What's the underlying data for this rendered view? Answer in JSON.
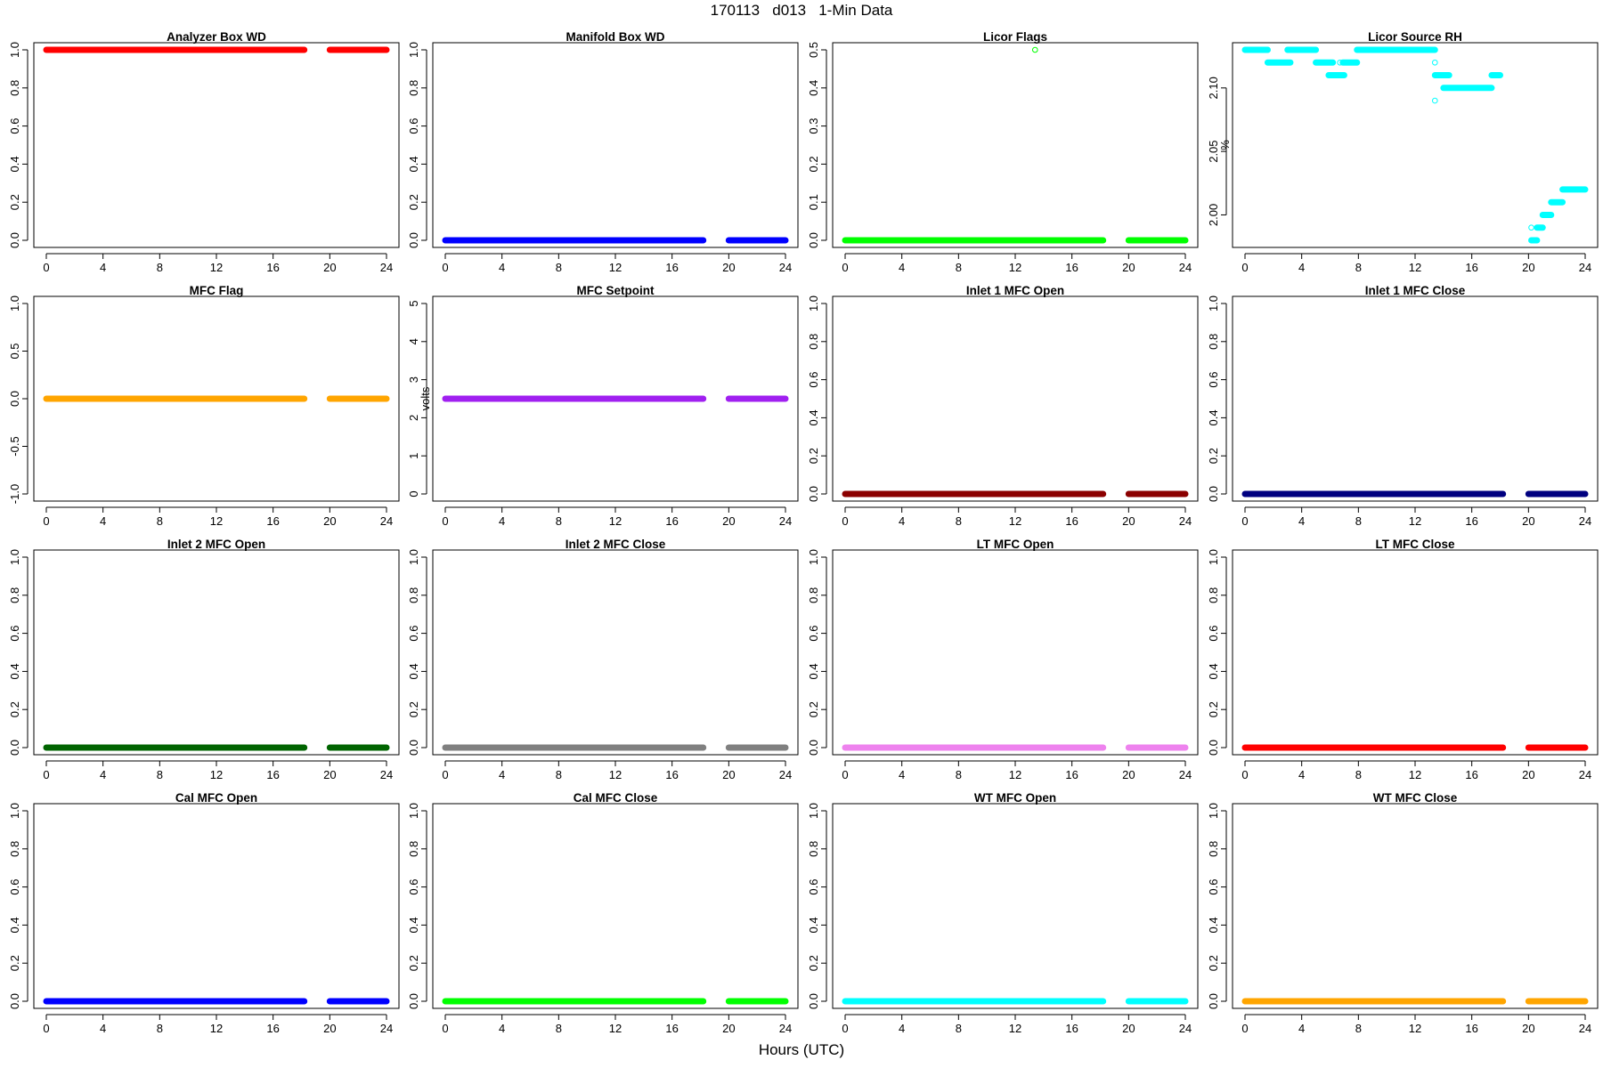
{
  "title": "170113   d013   1-Min Data",
  "xlabel": "Hours (UTC)",
  "colors": {
    "red": "#ff0000",
    "blue": "#0000ff",
    "green": "#00ff00",
    "cyan": "#00ffff",
    "orange": "#ffa500",
    "purple": "#a020f0",
    "darkred": "#8b0000",
    "navy": "#000080",
    "darkgreen": "#006400",
    "gray": "#808080",
    "violet": "#ee82ee"
  },
  "chart_data": [
    {
      "type": "scatter",
      "title": "Analyzer Box WD",
      "ylabel": "",
      "ylim": [
        0,
        1
      ],
      "yticks": [
        "0.0",
        "0.2",
        "0.4",
        "0.6",
        "0.8",
        "1.0"
      ],
      "ytick_values": [
        0,
        0.2,
        0.4,
        0.6,
        0.8,
        1.0
      ],
      "xlim": [
        0,
        24
      ],
      "xticks": [
        "0",
        "4",
        "8",
        "12",
        "16",
        "20",
        "24"
      ],
      "color": "#ff0000",
      "series": [
        {
          "segments": [
            {
              "x": [
                0,
                18.2
              ],
              "y": 1
            },
            {
              "x": [
                20,
                24
              ],
              "y": 1
            }
          ]
        }
      ]
    },
    {
      "type": "scatter",
      "title": "Manifold Box WD",
      "ylabel": "",
      "ylim": [
        0,
        1
      ],
      "yticks": [
        "0.0",
        "0.2",
        "0.4",
        "0.6",
        "0.8",
        "1.0"
      ],
      "ytick_values": [
        0,
        0.2,
        0.4,
        0.6,
        0.8,
        1.0
      ],
      "xlim": [
        0,
        24
      ],
      "xticks": [
        "0",
        "4",
        "8",
        "12",
        "16",
        "20",
        "24"
      ],
      "color": "#0000ff",
      "series": [
        {
          "segments": [
            {
              "x": [
                0,
                18.2
              ],
              "y": 0
            },
            {
              "x": [
                20,
                24
              ],
              "y": 0
            }
          ]
        }
      ]
    },
    {
      "type": "scatter",
      "title": "Licor Flags",
      "ylabel": "",
      "ylim": [
        0,
        0.5
      ],
      "yticks": [
        "0.0",
        "0.1",
        "0.2",
        "0.3",
        "0.4",
        "0.5"
      ],
      "ytick_values": [
        0,
        0.1,
        0.2,
        0.3,
        0.4,
        0.5
      ],
      "xlim": [
        0,
        24
      ],
      "xticks": [
        "0",
        "4",
        "8",
        "12",
        "16",
        "20",
        "24"
      ],
      "color": "#00ff00",
      "series": [
        {
          "segments": [
            {
              "x": [
                0,
                18.2
              ],
              "y": 0
            },
            {
              "x": [
                20,
                24
              ],
              "y": 0
            }
          ],
          "points": [
            {
              "x": 13.4,
              "y": 0.5
            }
          ]
        }
      ]
    },
    {
      "type": "scatter",
      "title": "Licor Source RH",
      "ylabel": "%",
      "ylim": [
        1.98,
        2.13
      ],
      "yticks": [
        "2.00",
        "2.05",
        "2.10"
      ],
      "ytick_values": [
        2.0,
        2.05,
        2.1
      ],
      "xlim": [
        0,
        24
      ],
      "xticks": [
        "0",
        "4",
        "8",
        "12",
        "16",
        "20",
        "24"
      ],
      "color": "#00ffff",
      "series": [
        {
          "segments": [
            {
              "x": [
                0,
                1.6
              ],
              "y": 2.13
            },
            {
              "x": [
                1.6,
                3.2
              ],
              "y": 2.12
            },
            {
              "x": [
                3.0,
                5.0
              ],
              "y": 2.13
            },
            {
              "x": [
                5.0,
                6.2
              ],
              "y": 2.12
            },
            {
              "x": [
                5.9,
                7.0
              ],
              "y": 2.11
            },
            {
              "x": [
                6.9,
                7.9
              ],
              "y": 2.12
            },
            {
              "x": [
                7.9,
                13.4
              ],
              "y": 2.13
            },
            {
              "x": [
                13.4,
                14.4
              ],
              "y": 2.11
            },
            {
              "x": [
                14.0,
                17.4
              ],
              "y": 2.1
            },
            {
              "x": [
                17.4,
                18.0
              ],
              "y": 2.11
            },
            {
              "x": [
                20.2,
                20.6
              ],
              "y": 1.98
            },
            {
              "x": [
                20.6,
                21.0
              ],
              "y": 1.99
            },
            {
              "x": [
                21.0,
                21.6
              ],
              "y": 2.0
            },
            {
              "x": [
                21.6,
                22.4
              ],
              "y": 2.01
            },
            {
              "x": [
                22.4,
                24.0
              ],
              "y": 2.02
            }
          ],
          "points": [
            {
              "x": 13.4,
              "y": 2.09
            },
            {
              "x": 13.4,
              "y": 2.12
            },
            {
              "x": 6.7,
              "y": 2.12
            },
            {
              "x": 20.2,
              "y": 1.99
            }
          ]
        }
      ]
    },
    {
      "type": "scatter",
      "title": "MFC Flag",
      "ylabel": "",
      "ylim": [
        -1,
        1
      ],
      "yticks": [
        "-1.0",
        "-0.5",
        "0.0",
        "0.5",
        "1.0"
      ],
      "ytick_values": [
        -1,
        -0.5,
        0,
        0.5,
        1
      ],
      "xlim": [
        0,
        24
      ],
      "xticks": [
        "0",
        "4",
        "8",
        "12",
        "16",
        "20",
        "24"
      ],
      "color": "#ffa500",
      "series": [
        {
          "segments": [
            {
              "x": [
                0,
                18.2
              ],
              "y": 0
            },
            {
              "x": [
                20,
                24
              ],
              "y": 0
            }
          ]
        }
      ]
    },
    {
      "type": "scatter",
      "title": "MFC Setpoint",
      "ylabel": "volts",
      "ylim": [
        0,
        5
      ],
      "yticks": [
        "0",
        "1",
        "2",
        "3",
        "4",
        "5"
      ],
      "ytick_values": [
        0,
        1,
        2,
        3,
        4,
        5
      ],
      "xlim": [
        0,
        24
      ],
      "xticks": [
        "0",
        "4",
        "8",
        "12",
        "16",
        "20",
        "24"
      ],
      "color": "#a020f0",
      "series": [
        {
          "segments": [
            {
              "x": [
                0,
                18.2
              ],
              "y": 2.5
            },
            {
              "x": [
                20,
                24
              ],
              "y": 2.5
            }
          ]
        }
      ]
    },
    {
      "type": "scatter",
      "title": "Inlet 1 MFC Open",
      "ylabel": "",
      "ylim": [
        0,
        1
      ],
      "yticks": [
        "0.0",
        "0.2",
        "0.4",
        "0.6",
        "0.8",
        "1.0"
      ],
      "ytick_values": [
        0,
        0.2,
        0.4,
        0.6,
        0.8,
        1.0
      ],
      "xlim": [
        0,
        24
      ],
      "xticks": [
        "0",
        "4",
        "8",
        "12",
        "16",
        "20",
        "24"
      ],
      "color": "#8b0000",
      "series": [
        {
          "segments": [
            {
              "x": [
                0,
                18.2
              ],
              "y": 0
            },
            {
              "x": [
                20,
                24
              ],
              "y": 0
            }
          ]
        }
      ]
    },
    {
      "type": "scatter",
      "title": "Inlet 1 MFC Close",
      "ylabel": "",
      "ylim": [
        0,
        1
      ],
      "yticks": [
        "0.0",
        "0.2",
        "0.4",
        "0.6",
        "0.8",
        "1.0"
      ],
      "ytick_values": [
        0,
        0.2,
        0.4,
        0.6,
        0.8,
        1.0
      ],
      "xlim": [
        0,
        24
      ],
      "xticks": [
        "0",
        "4",
        "8",
        "12",
        "16",
        "20",
        "24"
      ],
      "color": "#000080",
      "series": [
        {
          "segments": [
            {
              "x": [
                0,
                18.2
              ],
              "y": 0
            },
            {
              "x": [
                20,
                24
              ],
              "y": 0
            }
          ]
        }
      ]
    },
    {
      "type": "scatter",
      "title": "Inlet 2 MFC Open",
      "ylabel": "",
      "ylim": [
        0,
        1
      ],
      "yticks": [
        "0.0",
        "0.2",
        "0.4",
        "0.6",
        "0.8",
        "1.0"
      ],
      "ytick_values": [
        0,
        0.2,
        0.4,
        0.6,
        0.8,
        1.0
      ],
      "xlim": [
        0,
        24
      ],
      "xticks": [
        "0",
        "4",
        "8",
        "12",
        "16",
        "20",
        "24"
      ],
      "color": "#006400",
      "series": [
        {
          "segments": [
            {
              "x": [
                0,
                18.2
              ],
              "y": 0
            },
            {
              "x": [
                20,
                24
              ],
              "y": 0
            }
          ]
        }
      ]
    },
    {
      "type": "scatter",
      "title": "Inlet 2 MFC Close",
      "ylabel": "",
      "ylim": [
        0,
        1
      ],
      "yticks": [
        "0.0",
        "0.2",
        "0.4",
        "0.6",
        "0.8",
        "1.0"
      ],
      "ytick_values": [
        0,
        0.2,
        0.4,
        0.6,
        0.8,
        1.0
      ],
      "xlim": [
        0,
        24
      ],
      "xticks": [
        "0",
        "4",
        "8",
        "12",
        "16",
        "20",
        "24"
      ],
      "color": "#808080",
      "series": [
        {
          "segments": [
            {
              "x": [
                0,
                18.2
              ],
              "y": 0
            },
            {
              "x": [
                20,
                24
              ],
              "y": 0
            }
          ]
        }
      ]
    },
    {
      "type": "scatter",
      "title": "LT MFC Open",
      "ylabel": "",
      "ylim": [
        0,
        1
      ],
      "yticks": [
        "0.0",
        "0.2",
        "0.4",
        "0.6",
        "0.8",
        "1.0"
      ],
      "ytick_values": [
        0,
        0.2,
        0.4,
        0.6,
        0.8,
        1.0
      ],
      "xlim": [
        0,
        24
      ],
      "xticks": [
        "0",
        "4",
        "8",
        "12",
        "16",
        "20",
        "24"
      ],
      "color": "#ee82ee",
      "series": [
        {
          "segments": [
            {
              "x": [
                0,
                18.2
              ],
              "y": 0
            },
            {
              "x": [
                20,
                24
              ],
              "y": 0
            }
          ]
        }
      ]
    },
    {
      "type": "scatter",
      "title": "LT MFC Close",
      "ylabel": "",
      "ylim": [
        0,
        1
      ],
      "yticks": [
        "0.0",
        "0.2",
        "0.4",
        "0.6",
        "0.8",
        "1.0"
      ],
      "ytick_values": [
        0,
        0.2,
        0.4,
        0.6,
        0.8,
        1.0
      ],
      "xlim": [
        0,
        24
      ],
      "xticks": [
        "0",
        "4",
        "8",
        "12",
        "16",
        "20",
        "24"
      ],
      "color": "#ff0000",
      "series": [
        {
          "segments": [
            {
              "x": [
                0,
                18.2
              ],
              "y": 0
            },
            {
              "x": [
                20,
                24
              ],
              "y": 0
            }
          ]
        }
      ]
    },
    {
      "type": "scatter",
      "title": "Cal MFC Open",
      "ylabel": "",
      "ylim": [
        0,
        1
      ],
      "yticks": [
        "0.0",
        "0.2",
        "0.4",
        "0.6",
        "0.8",
        "1.0"
      ],
      "ytick_values": [
        0,
        0.2,
        0.4,
        0.6,
        0.8,
        1.0
      ],
      "xlim": [
        0,
        24
      ],
      "xticks": [
        "0",
        "4",
        "8",
        "12",
        "16",
        "20",
        "24"
      ],
      "color": "#0000ff",
      "series": [
        {
          "segments": [
            {
              "x": [
                0,
                18.2
              ],
              "y": 0
            },
            {
              "x": [
                20,
                24
              ],
              "y": 0
            }
          ]
        }
      ]
    },
    {
      "type": "scatter",
      "title": "Cal MFC Close",
      "ylabel": "",
      "ylim": [
        0,
        1
      ],
      "yticks": [
        "0.0",
        "0.2",
        "0.4",
        "0.6",
        "0.8",
        "1.0"
      ],
      "ytick_values": [
        0,
        0.2,
        0.4,
        0.6,
        0.8,
        1.0
      ],
      "xlim": [
        0,
        24
      ],
      "xticks": [
        "0",
        "4",
        "8",
        "12",
        "16",
        "20",
        "24"
      ],
      "color": "#00ff00",
      "series": [
        {
          "segments": [
            {
              "x": [
                0,
                18.2
              ],
              "y": 0
            },
            {
              "x": [
                20,
                24
              ],
              "y": 0
            }
          ]
        }
      ]
    },
    {
      "type": "scatter",
      "title": "WT MFC Open",
      "ylabel": "",
      "ylim": [
        0,
        1
      ],
      "yticks": [
        "0.0",
        "0.2",
        "0.4",
        "0.6",
        "0.8",
        "1.0"
      ],
      "ytick_values": [
        0,
        0.2,
        0.4,
        0.6,
        0.8,
        1.0
      ],
      "xlim": [
        0,
        24
      ],
      "xticks": [
        "0",
        "4",
        "8",
        "12",
        "16",
        "20",
        "24"
      ],
      "color": "#00ffff",
      "series": [
        {
          "segments": [
            {
              "x": [
                0,
                18.2
              ],
              "y": 0
            },
            {
              "x": [
                20,
                24
              ],
              "y": 0
            }
          ]
        }
      ]
    },
    {
      "type": "scatter",
      "title": "WT MFC Close",
      "ylabel": "",
      "ylim": [
        0,
        1
      ],
      "yticks": [
        "0.0",
        "0.2",
        "0.4",
        "0.6",
        "0.8",
        "1.0"
      ],
      "ytick_values": [
        0,
        0.2,
        0.4,
        0.6,
        0.8,
        1.0
      ],
      "xlim": [
        0,
        24
      ],
      "xticks": [
        "0",
        "4",
        "8",
        "12",
        "16",
        "20",
        "24"
      ],
      "color": "#ffa500",
      "series": [
        {
          "segments": [
            {
              "x": [
                0,
                18.2
              ],
              "y": 0
            },
            {
              "x": [
                20,
                24
              ],
              "y": 0
            }
          ]
        }
      ]
    }
  ]
}
